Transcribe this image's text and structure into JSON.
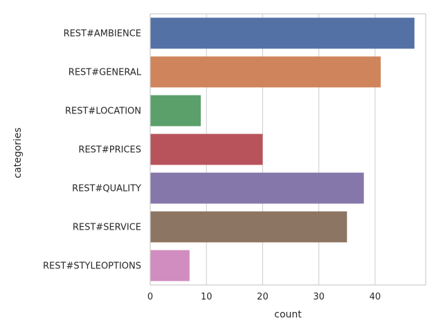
{
  "chart_data": {
    "type": "bar",
    "orientation": "horizontal",
    "xlabel": "count",
    "ylabel": "categories",
    "xlim": [
      0,
      49
    ],
    "xticks": [
      0,
      10,
      20,
      30,
      40
    ],
    "grid": true,
    "categories": [
      "REST#AMBIENCE",
      "REST#GENERAL",
      "REST#LOCATION",
      "REST#PRICES",
      "REST#QUALITY",
      "REST#SERVICE",
      "REST#STYLEOPTIONS"
    ],
    "values": [
      47,
      41,
      9,
      20,
      38,
      35,
      7
    ],
    "colors": [
      "#5471a6",
      "#d0845b",
      "#5ba06a",
      "#b9535b",
      "#8577aa",
      "#8c7562",
      "#d18dbf"
    ]
  }
}
